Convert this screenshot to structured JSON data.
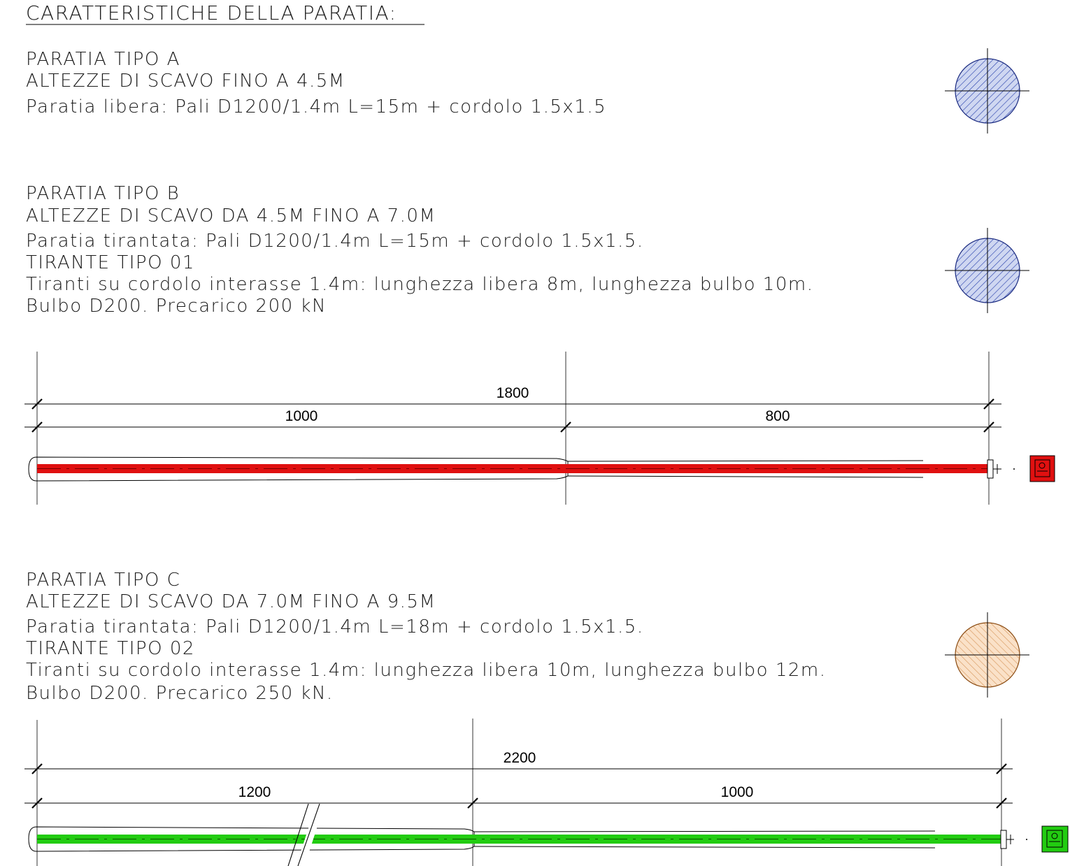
{
  "title": "CARATTERISTICHE DELLA PARATIA:",
  "tipo_a": {
    "heading": "PARATIA TIPO A",
    "scavo": "ALTEZZE DI SCAVO FINO A 4.5M",
    "descr": "Paratia libera: Pali D1200/1.4m L=15m + cordolo 1.5x1.5",
    "section_color": "#3f5fc9"
  },
  "tipo_b": {
    "heading": "PARATIA TIPO B",
    "scavo": "ALTEZZE DI SCAVO DA 4.5M FINO A 7.0M",
    "descr": "Paratia tirantata: Pali D1200/1.4m L=15m + cordolo 1.5x1.5.",
    "tirante": "TIRANTE TIPO 01",
    "tiranti_descr": "Tiranti su cordolo interasse 1.4m: lunghezza libera 8m, lunghezza bulbo 10m.",
    "bulbo": "Bulbo D200. Precarico 200 kN",
    "section_color": "#3f5fc9",
    "anchor_color": "#e01010",
    "dim_total": "1800",
    "dim_bulb": "1000",
    "dim_free": "800"
  },
  "tipo_c": {
    "heading": "PARATIA TIPO C",
    "scavo": "ALTEZZE DI SCAVO DA 7.0M FINO A 9.5M",
    "descr": "Paratia tirantata: Pali D1200/1.4m L=18m + cordolo 1.5x1.5.",
    "tirante": "TIRANTE TIPO 02",
    "tiranti_descr": "Tiranti su cordolo interasse 1.4m: lunghezza libera 10m, lunghezza bulbo 12m.",
    "bulbo": "Bulbo D200. Precarico 250 kN.",
    "section_color": "#d98a3a",
    "anchor_color": "#22cc11",
    "dim_total": "2200",
    "dim_bulb": "1200",
    "dim_free": "1000"
  }
}
